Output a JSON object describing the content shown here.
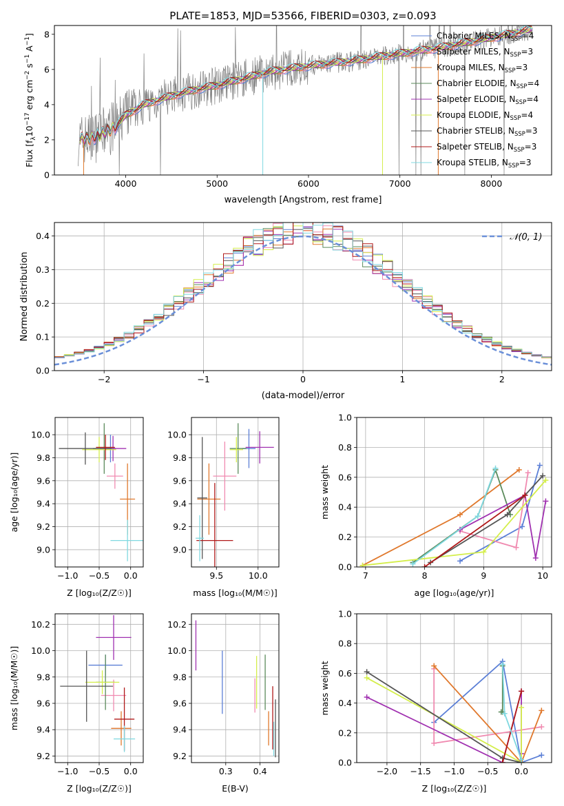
{
  "title": "PLATE=1853, MJD=53566, FIBERID=0303, z=0.093",
  "colors": {
    "chabrier_miles": "#5b7fd6",
    "salpeter_miles": "#f08ab0",
    "kroupa_miles": "#e0782c",
    "chabrier_elodie": "#5a8a5a",
    "salpeter_elodie": "#a030b0",
    "kroupa_elodie": "#d4ee4a",
    "chabrier_stelib": "#555555",
    "salpeter_stelib": "#b01818",
    "kroupa_stelib": "#7fd8e0",
    "data": "#7f7f7f",
    "normal": "#6a8fd8"
  },
  "legend_spectrum": [
    {
      "base": "Chabrier MILES, N",
      "sub": "SSP",
      "tail": "=4",
      "color_key": "chabrier_miles"
    },
    {
      "base": "Salpeter MILES, N",
      "sub": "SSP",
      "tail": "=3",
      "color_key": "salpeter_miles"
    },
    {
      "base": "Kroupa MILES, N",
      "sub": "SSP",
      "tail": "=3",
      "color_key": "kroupa_miles"
    },
    {
      "base": "Chabrier ELODIE, N",
      "sub": "SSP",
      "tail": "=4",
      "color_key": "chabrier_elodie"
    },
    {
      "base": "Salpeter ELODIE, N",
      "sub": "SSP",
      "tail": "=4",
      "color_key": "salpeter_elodie"
    },
    {
      "base": "Kroupa ELODIE, N",
      "sub": "SSP",
      "tail": "=4",
      "color_key": "kroupa_elodie"
    },
    {
      "base": "Chabrier STELIB, N",
      "sub": "SSP",
      "tail": "=3",
      "color_key": "chabrier_stelib"
    },
    {
      "base": "Salpeter STELIB, N",
      "sub": "SSP",
      "tail": "=3",
      "color_key": "salpeter_stelib"
    },
    {
      "base": "Kroupa STELIB, N",
      "sub": "SSP",
      "tail": "=3",
      "color_key": "kroupa_stelib"
    }
  ],
  "legend_hist": {
    "label": "𝒩(0, 1)"
  },
  "chart_data": [
    {
      "id": "spectrum",
      "type": "line",
      "xlabel": "wavelength [Angstrom, rest frame]",
      "ylabel_main": "Flux [f",
      "ylabel_sub": "λ",
      "ylabel_rest": "10",
      "ylabel_sup1": "−17",
      "ylabel_rest2": " erg cm",
      "ylabel_sup2": "−2",
      "ylabel_rest3": " s",
      "ylabel_sup3": "−1",
      "ylabel_rest4": " A",
      "ylabel_sup4": "−1",
      "ylabel_end": "]",
      "xlim": [
        3220,
        8660
      ],
      "ylim": [
        0,
        8.5
      ],
      "xticks": [
        4000,
        5000,
        6000,
        7000,
        8000
      ],
      "yticks": [
        0,
        2,
        4,
        6,
        8
      ],
      "model_continuum": [
        [
          3500,
          2.0
        ],
        [
          3700,
          2.2
        ],
        [
          3900,
          2.8
        ],
        [
          4000,
          3.4
        ],
        [
          4200,
          4.0
        ],
        [
          4500,
          4.5
        ],
        [
          4800,
          4.9
        ],
        [
          5000,
          5.1
        ],
        [
          5300,
          5.5
        ],
        [
          5600,
          5.9
        ],
        [
          6000,
          6.2
        ],
        [
          6500,
          6.5
        ],
        [
          7000,
          6.9
        ],
        [
          7400,
          7.2
        ],
        [
          7800,
          7.6
        ],
        [
          8200,
          8.0
        ],
        [
          8450,
          8.3
        ]
      ]
    },
    {
      "id": "histogram",
      "type": "step",
      "xlabel": "(data-model)/error",
      "ylabel": "Normed distribution",
      "xlim": [
        -2.5,
        2.5
      ],
      "ylim": [
        0,
        0.44
      ],
      "xticks": [
        -2,
        -1,
        0,
        1,
        2
      ],
      "xticklabels": [
        "−2",
        "−1",
        "0",
        "1",
        "2"
      ],
      "yticks": [
        0.0,
        0.1,
        0.2,
        0.3,
        0.4
      ],
      "yticklabels": [
        "0.0",
        "0.1",
        "0.2",
        "0.3",
        "0.4"
      ],
      "bin_width": 0.1
    },
    {
      "id": "age_vs_Z",
      "type": "errorbar",
      "xlabel": "Z [log₁₀(Z/Z☉)]",
      "ylabel": "age  [log₁₀(age/yr)]",
      "xlim": [
        -1.2,
        0.2
      ],
      "ylim": [
        8.85,
        10.15
      ],
      "xticks": [
        -1.0,
        -0.5,
        0.0
      ],
      "xticklabels": [
        "−1.0",
        "−0.5",
        "0.0"
      ],
      "yticks": [
        9.0,
        9.2,
        9.4,
        9.6,
        9.8,
        10.0
      ],
      "yticklabels": [
        "9.0",
        "9.2",
        "9.4",
        "9.6",
        "9.8",
        "10.0"
      ],
      "points": [
        {
          "c": "chabrier_miles",
          "x": -0.32,
          "xe": 0.08,
          "y": 9.88,
          "ye": 0.12
        },
        {
          "c": "salpeter_miles",
          "x": -0.25,
          "xe": 0.13,
          "y": 9.64,
          "ye": 0.11
        },
        {
          "c": "kroupa_miles",
          "x": -0.05,
          "xe": 0.12,
          "y": 9.44,
          "ye": 0.31
        },
        {
          "c": "chabrier_elodie",
          "x": -0.42,
          "xe": 0.18,
          "y": 9.88,
          "ye": 0.22
        },
        {
          "c": "salpeter_elodie",
          "x": -0.28,
          "xe": 0.21,
          "y": 9.88,
          "ye": 0.11
        },
        {
          "c": "kroupa_elodie",
          "x": -0.5,
          "xe": 0.27,
          "y": 9.87,
          "ye": 0.11
        },
        {
          "c": "chabrier_stelib",
          "x": -0.72,
          "xe": 0.42,
          "y": 9.88,
          "ye": 0.14
        },
        {
          "c": "salpeter_stelib",
          "x": -0.4,
          "xe": 0.15,
          "y": 9.89,
          "ye": 0.11
        },
        {
          "c": "kroupa_stelib",
          "x": -0.05,
          "xe": 0.27,
          "y": 9.08,
          "ye": 0.18
        }
      ]
    },
    {
      "id": "age_vs_mass",
      "type": "errorbar",
      "xlabel": "mass [log₁₀(M/M☉)]",
      "xlim": [
        9.2,
        10.25
      ],
      "ylim": [
        8.85,
        10.15
      ],
      "xticks": [
        9.5,
        10.0
      ],
      "xticklabels": [
        "9.5",
        "10.0"
      ],
      "yticks": [
        9.0,
        9.2,
        9.4,
        9.6,
        9.8,
        10.0
      ],
      "yticklabels": [
        "9.0",
        "9.2",
        "9.4",
        "9.6",
        "9.8",
        "10.0"
      ],
      "points": [
        {
          "c": "chabrier_miles",
          "x": 9.89,
          "xe": 0.08,
          "y": 9.88,
          "ye": 0.17
        },
        {
          "c": "salpeter_miles",
          "x": 9.6,
          "xe": 0.14,
          "y": 9.64,
          "ye": 0.3
        },
        {
          "c": "kroupa_miles",
          "x": 9.41,
          "xe": 0.14,
          "y": 9.44,
          "ye": 0.31
        },
        {
          "c": "chabrier_elodie",
          "x": 9.76,
          "xe": 0.1,
          "y": 9.88,
          "ye": 0.22
        },
        {
          "c": "salpeter_elodie",
          "x": 10.02,
          "xe": 0.17,
          "y": 9.89,
          "ye": 0.14
        },
        {
          "c": "kroupa_elodie",
          "x": 9.74,
          "xe": 0.08,
          "y": 9.87,
          "ye": 0.11
        },
        {
          "c": "chabrier_stelib",
          "x": 9.33,
          "xe": 0.06,
          "y": 9.45,
          "ye": 0.53
        },
        {
          "c": "salpeter_stelib",
          "x": 9.48,
          "xe": 0.22,
          "y": 9.08,
          "ye": 0.5
        },
        {
          "c": "kroupa_stelib",
          "x": 9.3,
          "xe": 0.05,
          "y": 9.1,
          "ye": 0.2
        }
      ]
    },
    {
      "id": "massweight_vs_age",
      "type": "line",
      "xlabel": "age  [log₁₀(age/yr)]",
      "ylabel": "mass weight",
      "xlim": [
        6.85,
        10.15
      ],
      "ylim": [
        0,
        1.0
      ],
      "xticks": [
        7,
        8,
        9,
        10
      ],
      "xticklabels": [
        "7",
        "8",
        "9",
        "10"
      ],
      "yticks": [
        0.0,
        0.2,
        0.4,
        0.6,
        0.8,
        1.0
      ],
      "yticklabels": [
        "0.0",
        "0.2",
        "0.4",
        "0.6",
        "0.8",
        "1.0"
      ],
      "series": [
        {
          "c": "chabrier_miles",
          "pts": [
            [
              8.6,
              0.04
            ],
            [
              9.65,
              0.27
            ],
            [
              9.95,
              0.68
            ]
          ]
        },
        {
          "c": "salpeter_miles",
          "pts": [
            [
              8.6,
              0.24
            ],
            [
              9.55,
              0.13
            ],
            [
              9.75,
              0.63
            ]
          ]
        },
        {
          "c": "kroupa_miles",
          "pts": [
            [
              6.95,
              0.01
            ],
            [
              8.6,
              0.35
            ],
            [
              9.6,
              0.65
            ]
          ]
        },
        {
          "c": "chabrier_elodie",
          "pts": [
            [
              7.8,
              0.03
            ],
            [
              8.9,
              0.34
            ],
            [
              9.2,
              0.65
            ],
            [
              9.45,
              0.35
            ]
          ]
        },
        {
          "c": "salpeter_elodie",
          "pts": [
            [
              8.6,
              0.25
            ],
            [
              9.7,
              0.48
            ],
            [
              9.88,
              0.06
            ],
            [
              10.05,
              0.44
            ]
          ]
        },
        {
          "c": "kroupa_elodie",
          "pts": [
            [
              6.95,
              0.01
            ],
            [
              9.0,
              0.1
            ],
            [
              10.05,
              0.58
            ]
          ]
        },
        {
          "c": "chabrier_stelib",
          "pts": [
            [
              8.1,
              0.03
            ],
            [
              9.4,
              0.35
            ],
            [
              10.0,
              0.61
            ]
          ]
        },
        {
          "c": "salpeter_stelib",
          "pts": [
            [
              8.0,
              0.0
            ],
            [
              9.7,
              0.48
            ]
          ]
        },
        {
          "c": "kroupa_stelib",
          "pts": [
            [
              7.8,
              0.02
            ],
            [
              8.9,
              0.34
            ],
            [
              9.2,
              0.66
            ]
          ]
        }
      ]
    },
    {
      "id": "mass_vs_Z",
      "type": "errorbar",
      "xlabel": "Z [log₁₀(Z/Z☉)]",
      "ylabel": "mass [log₁₀(M/M☉)]",
      "xlim": [
        -1.2,
        0.2
      ],
      "ylim": [
        9.15,
        10.28
      ],
      "xticks": [
        -1.0,
        -0.5,
        0.0
      ],
      "xticklabels": [
        "−1.0",
        "−0.5",
        "0.0"
      ],
      "yticks": [
        9.2,
        9.4,
        9.6,
        9.8,
        10.0,
        10.2
      ],
      "yticklabels": [
        "9.2",
        "9.4",
        "9.6",
        "9.8",
        "10.0",
        "10.2"
      ],
      "points": [
        {
          "c": "chabrier_miles",
          "x": -0.4,
          "xe": 0.27,
          "y": 9.89,
          "ye": 0.08
        },
        {
          "c": "salpeter_miles",
          "x": -0.27,
          "xe": 0.2,
          "y": 9.66,
          "ye": 0.12
        },
        {
          "c": "kroupa_miles",
          "x": -0.15,
          "xe": 0.16,
          "y": 9.41,
          "ye": 0.13
        },
        {
          "c": "chabrier_elodie",
          "x": -0.4,
          "xe": 0.15,
          "y": 9.76,
          "ye": 0.21
        },
        {
          "c": "salpeter_elodie",
          "x": -0.27,
          "xe": 0.28,
          "y": 10.1,
          "ye": 0.17
        },
        {
          "c": "kroupa_elodie",
          "x": -0.45,
          "xe": 0.27,
          "y": 9.76,
          "ye": 0.09
        },
        {
          "c": "chabrier_stelib",
          "x": -0.7,
          "xe": 0.42,
          "y": 9.73,
          "ye": 0.27
        },
        {
          "c": "salpeter_stelib",
          "x": -0.1,
          "xe": 0.16,
          "y": 9.48,
          "ye": 0.24
        },
        {
          "c": "kroupa_stelib",
          "x": -0.1,
          "xe": 0.17,
          "y": 9.33,
          "ye": 0.1
        }
      ]
    },
    {
      "id": "mass_vs_ebv",
      "type": "errorbar",
      "xlabel": "E(B-V)",
      "xlim": [
        0.2,
        0.455
      ],
      "ylim": [
        9.15,
        10.28
      ],
      "xticks": [
        0.3,
        0.4
      ],
      "xticklabels": [
        "0.3",
        "0.4"
      ],
      "yticks": [
        9.2,
        9.4,
        9.6,
        9.8,
        10.0,
        10.2
      ],
      "yticklabels": [
        "9.2",
        "9.4",
        "9.6",
        "9.8",
        "10.0",
        "10.2"
      ],
      "points": [
        {
          "c": "chabrier_miles",
          "x": 0.29,
          "xe": 0,
          "y": 9.76,
          "ye": 0.24
        },
        {
          "c": "salpeter_miles",
          "x": 0.385,
          "xe": 0,
          "y": 9.66,
          "ye": 0.13
        },
        {
          "c": "kroupa_miles",
          "x": 0.425,
          "xe": 0,
          "y": 9.41,
          "ye": 0.13
        },
        {
          "c": "chabrier_elodie",
          "x": 0.415,
          "xe": 0,
          "y": 9.76,
          "ye": 0.21
        },
        {
          "c": "salpeter_elodie",
          "x": 0.213,
          "xe": 0,
          "y": 10.04,
          "ye": 0.19
        },
        {
          "c": "kroupa_elodie",
          "x": 0.39,
          "xe": 0,
          "y": 9.76,
          "ye": 0.2
        },
        {
          "c": "chabrier_stelib",
          "x": 0.445,
          "xe": 0,
          "y": 9.41,
          "ye": 0.22
        },
        {
          "c": "salpeter_stelib",
          "x": 0.437,
          "xe": 0,
          "y": 9.49,
          "ye": 0.24
        },
        {
          "c": "kroupa_stelib",
          "x": 0.44,
          "xe": 0,
          "y": 9.33,
          "ye": 0.13
        }
      ]
    },
    {
      "id": "massweight_vs_Z",
      "type": "line",
      "xlabel": "Z [log₁₀(Z/Z☉)]",
      "ylabel": "mass weight",
      "xlim": [
        -2.45,
        0.45
      ],
      "ylim": [
        0,
        1.0
      ],
      "xticks": [
        -2.0,
        -1.5,
        -1.0,
        -0.5,
        0.0
      ],
      "xticklabels": [
        "−2.0",
        "−1.5",
        "−1.0",
        "−0.5",
        "0.0"
      ],
      "yticks": [
        0.0,
        0.2,
        0.4,
        0.6,
        0.8,
        1.0
      ],
      "yticklabels": [
        "0.0",
        "0.2",
        "0.4",
        "0.6",
        "0.8",
        "1.0"
      ],
      "series": [
        {
          "c": "chabrier_miles",
          "pts": [
            [
              -1.3,
              0.27
            ],
            [
              -0.28,
              0.68
            ],
            [
              0.0,
              0.0
            ],
            [
              0.3,
              0.05
            ]
          ]
        },
        {
          "c": "salpeter_miles",
          "pts": [
            [
              -1.3,
              0.63
            ],
            [
              -1.3,
              0.13
            ],
            [
              0.3,
              0.24
            ]
          ]
        },
        {
          "c": "kroupa_miles",
          "pts": [
            [
              -1.3,
              0.65
            ],
            [
              0.0,
              0.0
            ],
            [
              0.3,
              0.35
            ]
          ]
        },
        {
          "c": "chabrier_elodie",
          "pts": [
            [
              -0.28,
              0.65
            ],
            [
              -0.28,
              0.34
            ],
            [
              -0.3,
              0.34
            ]
          ]
        },
        {
          "c": "salpeter_elodie",
          "pts": [
            [
              -2.3,
              0.44
            ],
            [
              -0.28,
              0.0
            ],
            [
              0.0,
              0.48
            ],
            [
              0.0,
              0.06
            ]
          ]
        },
        {
          "c": "kroupa_elodie",
          "pts": [
            [
              -2.3,
              0.57
            ],
            [
              0.0,
              0.0
            ],
            [
              0.0,
              0.37
            ]
          ]
        },
        {
          "c": "chabrier_stelib",
          "pts": [
            [
              -2.3,
              0.61
            ],
            [
              -0.28,
              0.03
            ],
            [
              0.0,
              0.0
            ]
          ]
        },
        {
          "c": "salpeter_stelib",
          "pts": [
            [
              -0.28,
              0.0
            ],
            [
              0.0,
              0.48
            ]
          ]
        },
        {
          "c": "kroupa_stelib",
          "pts": [
            [
              -0.28,
              0.66
            ],
            [
              -0.25,
              0.33
            ],
            [
              0.0,
              0.02
            ]
          ]
        }
      ]
    }
  ]
}
